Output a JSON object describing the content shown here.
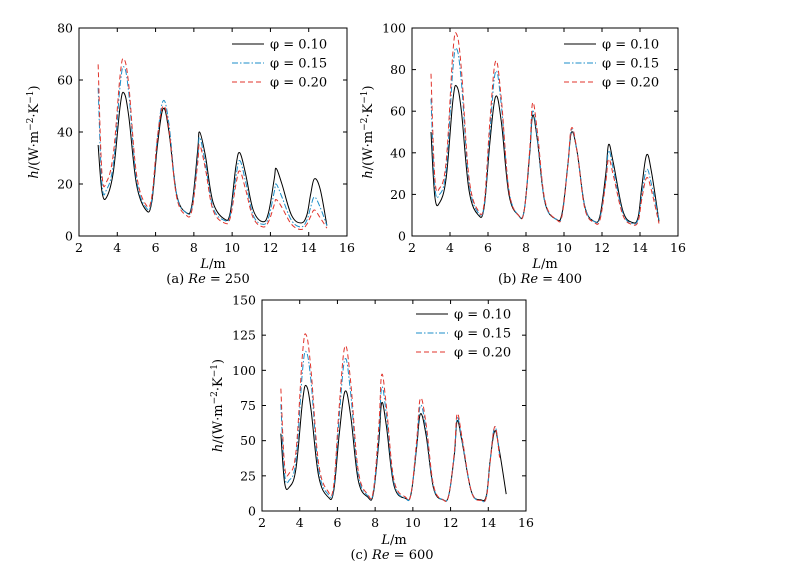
{
  "chart_data": [
    {
      "type": "line",
      "caption": "(a) Re = 250",
      "caption_parts": [
        "(a) ",
        "Re",
        " = 250"
      ],
      "xlabel": [
        "L",
        "/m"
      ],
      "ylabel": [
        "h",
        "/(W·m",
        "−2",
        "·K",
        "−1",
        ")"
      ],
      "xlim": [
        2,
        16
      ],
      "ylim": [
        0,
        80
      ],
      "xticks": [
        2,
        4,
        6,
        8,
        10,
        12,
        14,
        16
      ],
      "yticks": [
        0,
        20,
        40,
        60,
        80
      ],
      "grid": false,
      "legend_position": "top-right",
      "legend": [
        "φ = 0.10",
        "φ = 0.15",
        "φ = 0.20"
      ],
      "series": [
        {
          "name": "φ = 0.10",
          "color": "#000000",
          "dash": "solid",
          "x": [
            3.0,
            3.2,
            3.45,
            3.8,
            4.15,
            4.35,
            4.6,
            5.0,
            5.5,
            5.8,
            6.1,
            6.4,
            6.7,
            7.1,
            7.6,
            7.9,
            8.2,
            8.3,
            8.6,
            9.0,
            9.6,
            9.9,
            10.2,
            10.4,
            10.7,
            11.1,
            11.6,
            11.9,
            12.2,
            12.3,
            12.6,
            13.1,
            13.6,
            13.9,
            14.1,
            14.3,
            14.6,
            14.95
          ],
          "y": [
            35,
            17,
            15,
            25,
            50,
            55,
            46,
            20,
            10,
            13,
            35,
            49,
            40,
            16,
            9,
            12,
            33,
            40,
            31,
            13,
            6.5,
            9,
            27,
            32,
            24,
            10,
            5.5,
            9,
            22,
            26,
            20,
            8,
            5,
            8,
            16,
            22,
            18,
            4
          ]
        },
        {
          "name": "φ = 0.15",
          "color": "#1b8ec8",
          "dash": "dashdot",
          "x": [
            3.0,
            3.2,
            3.45,
            3.8,
            4.15,
            4.35,
            4.6,
            5.0,
            5.5,
            5.8,
            6.1,
            6.4,
            6.7,
            7.1,
            7.6,
            7.9,
            8.2,
            8.3,
            8.6,
            9.0,
            9.6,
            9.9,
            10.2,
            10.4,
            10.7,
            11.1,
            11.6,
            11.9,
            12.2,
            12.3,
            12.6,
            13.1,
            13.6,
            13.9,
            14.1,
            14.3,
            14.6,
            14.95
          ],
          "y": [
            57,
            20,
            18,
            28,
            58,
            65,
            55,
            22,
            11,
            14,
            38,
            52,
            43,
            16,
            9,
            11,
            30,
            38,
            28,
            11,
            6,
            8,
            23,
            29,
            21,
            8,
            4.5,
            7,
            17,
            20,
            15,
            6,
            3.5,
            6,
            11,
            15,
            11,
            4
          ]
        },
        {
          "name": "φ = 0.20",
          "color": "#e0332b",
          "dash": "dashed",
          "x": [
            3.0,
            3.2,
            3.45,
            3.8,
            4.15,
            4.35,
            4.6,
            5.0,
            5.5,
            5.8,
            6.1,
            6.4,
            6.7,
            7.1,
            7.6,
            7.9,
            8.2,
            8.3,
            8.6,
            9.0,
            9.6,
            9.9,
            10.2,
            10.4,
            10.7,
            11.1,
            11.6,
            11.9,
            12.2,
            12.3,
            12.6,
            13.1,
            13.6,
            13.9,
            14.1,
            14.3,
            14.6,
            14.95
          ],
          "y": [
            66,
            24,
            21,
            32,
            62,
            68,
            58,
            24,
            12,
            15,
            38,
            50,
            41,
            15,
            8,
            10,
            28,
            35,
            26,
            10,
            5,
            7,
            20,
            25,
            18,
            7,
            3.5,
            5.5,
            12,
            14,
            11,
            4.5,
            2.5,
            4.5,
            7.5,
            10,
            7,
            3
          ]
        }
      ]
    },
    {
      "type": "line",
      "caption": "(b) Re = 400",
      "caption_parts": [
        "(b) ",
        "Re",
        " = 400"
      ],
      "xlabel": [
        "L",
        "/m"
      ],
      "ylabel": [
        "h",
        "/(W·m",
        "−2",
        "·K",
        "−1",
        ")"
      ],
      "xlim": [
        2,
        16
      ],
      "ylim": [
        0,
        100
      ],
      "xticks": [
        2,
        4,
        6,
        8,
        10,
        12,
        14,
        16
      ],
      "yticks": [
        0,
        20,
        40,
        60,
        80,
        100
      ],
      "grid": false,
      "legend_position": "top-right",
      "legend": [
        "φ = 0.10",
        "φ = 0.15",
        "φ = 0.20"
      ],
      "series": [
        {
          "name": "φ = 0.10",
          "color": "#000000",
          "dash": "solid",
          "x": [
            3.0,
            3.2,
            3.45,
            3.8,
            4.15,
            4.35,
            4.6,
            5.0,
            5.5,
            5.8,
            6.1,
            6.4,
            6.7,
            7.1,
            7.6,
            7.9,
            8.2,
            8.35,
            8.6,
            9.0,
            9.6,
            9.9,
            10.2,
            10.4,
            10.7,
            11.1,
            11.6,
            11.9,
            12.2,
            12.35,
            12.6,
            13.1,
            13.6,
            13.9,
            14.1,
            14.35,
            14.6,
            15.0
          ],
          "y": [
            50,
            19,
            16,
            28,
            65,
            72,
            60,
            22,
            10,
            14,
            45,
            67,
            55,
            20,
            10,
            12,
            40,
            58,
            46,
            16,
            8,
            11,
            34,
            50,
            40,
            14,
            7,
            10,
            30,
            44,
            35,
            12,
            6.5,
            9,
            24,
            39,
            31,
            7
          ]
        },
        {
          "name": "φ = 0.15",
          "color": "#1b8ec8",
          "dash": "dashdot",
          "x": [
            3.0,
            3.2,
            3.45,
            3.8,
            4.15,
            4.35,
            4.6,
            5.0,
            5.5,
            5.8,
            6.1,
            6.4,
            6.7,
            7.1,
            7.6,
            7.9,
            8.2,
            8.35,
            8.6,
            9.0,
            9.6,
            9.9,
            10.2,
            10.4,
            10.7,
            11.1,
            11.6,
            11.9,
            12.2,
            12.35,
            12.6,
            13.1,
            13.6,
            13.9,
            14.1,
            14.35,
            14.6,
            15.0
          ],
          "y": [
            66,
            24,
            20,
            32,
            80,
            90,
            74,
            26,
            11,
            15,
            50,
            79,
            63,
            22,
            10,
            12,
            41,
            60,
            47,
            16,
            8,
            10,
            34,
            51,
            40,
            14,
            7,
            9,
            27,
            41,
            32,
            11,
            6,
            8,
            20,
            32,
            25,
            8
          ]
        },
        {
          "name": "φ = 0.20",
          "color": "#e0332b",
          "dash": "dashed",
          "x": [
            3.0,
            3.2,
            3.45,
            3.8,
            4.15,
            4.35,
            4.6,
            5.0,
            5.5,
            5.8,
            6.1,
            6.4,
            6.7,
            7.1,
            7.6,
            7.9,
            8.2,
            8.35,
            8.6,
            9.0,
            9.6,
            9.9,
            10.2,
            10.4,
            10.7,
            11.1,
            11.6,
            11.9,
            12.2,
            12.35,
            12.6,
            13.1,
            13.6,
            13.9,
            14.1,
            14.35,
            14.6,
            15.0
          ],
          "y": [
            78,
            28,
            23,
            36,
            88,
            97,
            80,
            28,
            12,
            16,
            55,
            84,
            66,
            22,
            10,
            12,
            42,
            64,
            50,
            17,
            8,
            10,
            34,
            52,
            40,
            13,
            6.5,
            8,
            26,
            37,
            29,
            10,
            5.5,
            7,
            18,
            28,
            22,
            6
          ]
        }
      ]
    },
    {
      "type": "line",
      "caption": "(c) Re = 600",
      "caption_parts": [
        "(c) ",
        "Re",
        " = 600"
      ],
      "xlabel": [
        "L",
        "/m"
      ],
      "ylabel": [
        "h",
        "/(W·m",
        "−2",
        "·K",
        "−1",
        ")"
      ],
      "xlim": [
        2,
        16
      ],
      "ylim": [
        0,
        150
      ],
      "xticks": [
        2,
        4,
        6,
        8,
        10,
        12,
        14,
        16
      ],
      "yticks": [
        0,
        25,
        50,
        75,
        100,
        125,
        150
      ],
      "grid": false,
      "legend_position": "top-right",
      "legend": [
        "φ = 0.10",
        "φ = 0.15",
        "φ = 0.20"
      ],
      "series": [
        {
          "name": "φ = 0.10",
          "color": "#000000",
          "dash": "solid",
          "x": [
            3.0,
            3.2,
            3.45,
            3.8,
            4.15,
            4.35,
            4.6,
            5.0,
            5.5,
            5.8,
            6.1,
            6.4,
            6.7,
            7.1,
            7.6,
            7.9,
            8.2,
            8.35,
            8.6,
            9.0,
            9.6,
            9.9,
            10.2,
            10.4,
            10.7,
            11.1,
            11.6,
            11.9,
            12.2,
            12.35,
            12.6,
            13.1,
            13.6,
            13.9,
            14.1,
            14.35,
            14.6,
            14.95
          ],
          "y": [
            55,
            20,
            17,
            30,
            78,
            89,
            72,
            25,
            10,
            14,
            55,
            85,
            68,
            22,
            10,
            12,
            50,
            77,
            60,
            18,
            9,
            12,
            45,
            69,
            54,
            16,
            8,
            11,
            40,
            64,
            50,
            14,
            8,
            11,
            36,
            57,
            42,
            12
          ]
        },
        {
          "name": "φ = 0.15",
          "color": "#1b8ec8",
          "dash": "dashdot",
          "x": [
            3.0,
            3.2,
            3.45,
            3.8,
            4.15,
            4.35,
            4.6,
            5.0,
            5.5,
            5.8,
            6.1,
            6.4,
            6.7,
            7.1,
            7.6,
            7.9,
            8.2,
            8.35,
            8.6,
            9.0,
            9.6,
            9.9,
            10.2,
            10.4,
            10.7,
            11.1,
            11.6,
            11.9,
            12.2,
            12.35,
            12.6,
            13.1,
            13.6,
            13.9,
            14.1,
            14.35,
            14.6
          ],
          "y": [
            76,
            26,
            22,
            36,
            100,
            113,
            92,
            30,
            12,
            16,
            68,
            108,
            84,
            26,
            11,
            13,
            55,
            88,
            68,
            20,
            9,
            12,
            47,
            75,
            58,
            17,
            8,
            11,
            40,
            66,
            51,
            14,
            7.5,
            10,
            36,
            60,
            40
          ]
        },
        {
          "name": "φ = 0.20",
          "color": "#e0332b",
          "dash": "dashed",
          "x": [
            3.0,
            3.2,
            3.45,
            3.8,
            4.15,
            4.35,
            4.6,
            5.0,
            5.5,
            5.8,
            6.1,
            6.4,
            6.7,
            7.1,
            7.6,
            7.9,
            8.2,
            8.35,
            8.6,
            9.0,
            9.6,
            9.9,
            10.2,
            10.4,
            10.7,
            11.1,
            11.6,
            11.9,
            12.2,
            12.35,
            12.6,
            13.1,
            13.6,
            13.9,
            14.1,
            14.35,
            14.6
          ],
          "y": [
            87,
            32,
            27,
            42,
            112,
            125,
            100,
            34,
            14,
            18,
            75,
            117,
            92,
            29,
            12,
            14,
            61,
            97,
            74,
            22,
            10,
            12,
            50,
            80,
            62,
            18,
            8,
            11,
            42,
            69,
            53,
            14,
            7.5,
            10,
            35,
            60,
            38
          ]
        }
      ]
    }
  ]
}
